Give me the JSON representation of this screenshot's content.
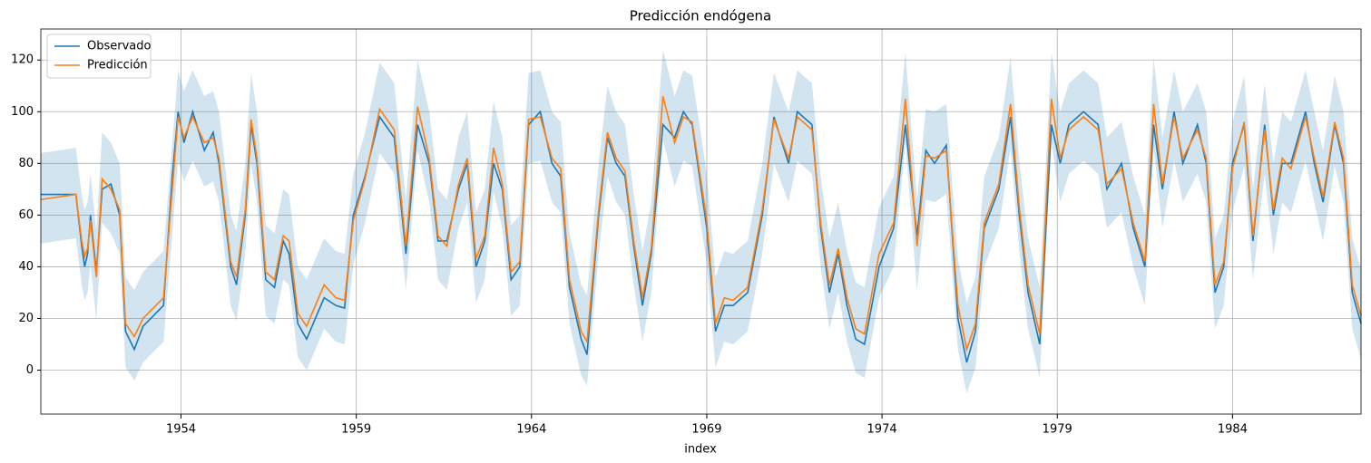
{
  "chart_data": {
    "type": "line",
    "title": "Predicción endógena",
    "xlabel": "index",
    "x": [
      "1950-01",
      "1951-01",
      "1951-03",
      "1951-04",
      "1951-05",
      "1951-06",
      "1951-08",
      "1951-10",
      "1952-01",
      "1952-04",
      "1952-06",
      "1952-09",
      "1952-12",
      "1953-07",
      "1953-10",
      "1953-12",
      "1954-02",
      "1954-05",
      "1954-09",
      "1954-12",
      "1955-02",
      "1955-04",
      "1955-06",
      "1955-08",
      "1955-11",
      "1956-01",
      "1956-03",
      "1956-06",
      "1956-09",
      "1956-12",
      "1957-02",
      "1957-05",
      "1957-08",
      "1957-11",
      "1958-02",
      "1958-06",
      "1958-09",
      "1958-12",
      "1959-04",
      "1959-09",
      "1960-02",
      "1960-06",
      "1960-10",
      "1961-02",
      "1961-05",
      "1961-08",
      "1961-12",
      "1962-03",
      "1962-06",
      "1962-09",
      "1962-12",
      "1963-03",
      "1963-06",
      "1963-09",
      "1963-12",
      "1964-04",
      "1964-08",
      "1964-11",
      "1965-02",
      "1965-06",
      "1965-08",
      "1965-12",
      "1966-03",
      "1966-06",
      "1966-09",
      "1966-12",
      "1967-03",
      "1967-06",
      "1967-10",
      "1968-02",
      "1968-05",
      "1968-08",
      "1969-01",
      "1969-04",
      "1969-07",
      "1969-10",
      "1970-03",
      "1970-08",
      "1970-12",
      "1971-05",
      "1971-08",
      "1972-01",
      "1972-04",
      "1972-07",
      "1972-10",
      "1973-01",
      "1973-04",
      "1973-07",
      "1973-12",
      "1974-05",
      "1974-09",
      "1975-01",
      "1975-04",
      "1975-07",
      "1975-11",
      "1976-03",
      "1976-06",
      "1976-09",
      "1976-12",
      "1977-05",
      "1977-09",
      "1977-12",
      "1978-03",
      "1978-07",
      "1978-11",
      "1979-02",
      "1979-05",
      "1979-10",
      "1980-03",
      "1980-06",
      "1980-11",
      "1981-03",
      "1981-07",
      "1981-10",
      "1982-01",
      "1982-05",
      "1982-08",
      "1983-01",
      "1983-04",
      "1983-07",
      "1983-10",
      "1984-01",
      "1984-05",
      "1984-08",
      "1984-12",
      "1985-03",
      "1985-06",
      "1985-09",
      "1986-02",
      "1986-05",
      "1986-08",
      "1986-12",
      "1987-03",
      "1987-06",
      "1987-09"
    ],
    "series": [
      {
        "name": "Observado",
        "color": "#1f77b4",
        "values": [
          68,
          68,
          48,
          40,
          45,
          60,
          38,
          70,
          72,
          60,
          15,
          8,
          17,
          25,
          75,
          100,
          88,
          100,
          85,
          92,
          80,
          60,
          40,
          33,
          60,
          95,
          80,
          35,
          32,
          50,
          45,
          18,
          12,
          20,
          28,
          25,
          24,
          60,
          75,
          98,
          90,
          45,
          95,
          80,
          50,
          50,
          70,
          80,
          40,
          50,
          80,
          70,
          35,
          40,
          95,
          100,
          80,
          75,
          32,
          12,
          6,
          60,
          90,
          80,
          75,
          48,
          25,
          45,
          95,
          90,
          100,
          95,
          55,
          15,
          25,
          25,
          30,
          60,
          98,
          80,
          100,
          95,
          55,
          30,
          45,
          25,
          12,
          10,
          40,
          55,
          95,
          52,
          85,
          80,
          87,
          20,
          3,
          15,
          55,
          70,
          98,
          60,
          30,
          10,
          95,
          80,
          95,
          100,
          95,
          70,
          80,
          55,
          40,
          95,
          70,
          100,
          80,
          95,
          80,
          30,
          40,
          80,
          95,
          50,
          95,
          60,
          80,
          80,
          100,
          80,
          65,
          95,
          80,
          30,
          18
        ]
      },
      {
        "name": "Predicción",
        "color": "#ff7f0e",
        "values": [
          66,
          68,
          50,
          44,
          47,
          58,
          36,
          74,
          70,
          62,
          18,
          13,
          20,
          28,
          70,
          98,
          90,
          98,
          88,
          90,
          82,
          62,
          42,
          36,
          62,
          97,
          82,
          38,
          35,
          52,
          50,
          22,
          17,
          25,
          33,
          28,
          27,
          58,
          74,
          101,
          93,
          48,
          102,
          82,
          52,
          48,
          72,
          82,
          43,
          52,
          86,
          72,
          38,
          42,
          97,
          98,
          82,
          78,
          35,
          15,
          11,
          62,
          92,
          82,
          77,
          50,
          28,
          47,
          106,
          88,
          98,
          96,
          58,
          18,
          28,
          27,
          32,
          62,
          97,
          82,
          98,
          93,
          57,
          33,
          47,
          28,
          16,
          14,
          45,
          57,
          105,
          48,
          83,
          82,
          85,
          25,
          8,
          18,
          57,
          72,
          103,
          63,
          33,
          14,
          105,
          82,
          93,
          98,
          93,
          72,
          78,
          57,
          42,
          103,
          72,
          98,
          82,
          93,
          82,
          33,
          42,
          78,
          96,
          52,
          93,
          62,
          82,
          78,
          98,
          82,
          67,
          96,
          82,
          33,
          21
        ]
      }
    ],
    "band": {
      "color": "#1f77b4",
      "lower": [
        49,
        51,
        33,
        27,
        30,
        41,
        19,
        57,
        53,
        45,
        1,
        -4,
        3,
        11,
        53,
        81,
        73,
        81,
        71,
        73,
        65,
        45,
        25,
        19,
        45,
        80,
        65,
        21,
        18,
        35,
        33,
        5,
        0,
        8,
        16,
        11,
        10,
        41,
        57,
        84,
        76,
        31,
        85,
        65,
        35,
        31,
        55,
        65,
        26,
        35,
        69,
        55,
        21,
        25,
        80,
        81,
        65,
        61,
        18,
        -2,
        -6,
        45,
        75,
        65,
        60,
        33,
        11,
        30,
        89,
        71,
        81,
        79,
        41,
        1,
        11,
        10,
        15,
        45,
        80,
        65,
        81,
        76,
        40,
        16,
        30,
        11,
        -1,
        -3,
        28,
        40,
        88,
        31,
        66,
        65,
        68,
        8,
        -9,
        1,
        40,
        55,
        86,
        46,
        16,
        -3,
        88,
        65,
        76,
        81,
        76,
        55,
        61,
        40,
        25,
        86,
        55,
        81,
        65,
        76,
        65,
        16,
        25,
        61,
        79,
        35,
        76,
        45,
        65,
        61,
        81,
        65,
        50,
        79,
        65,
        16,
        4
      ],
      "upper": [
        84,
        86,
        68,
        62,
        65,
        76,
        54,
        92,
        88,
        80,
        36,
        31,
        38,
        46,
        88,
        116,
        108,
        116,
        106,
        108,
        100,
        80,
        60,
        54,
        80,
        115,
        100,
        56,
        53,
        70,
        68,
        40,
        35,
        43,
        51,
        46,
        45,
        76,
        92,
        119,
        111,
        66,
        120,
        100,
        70,
        66,
        90,
        100,
        61,
        70,
        104,
        90,
        56,
        60,
        115,
        116,
        100,
        96,
        53,
        33,
        29,
        80,
        110,
        100,
        95,
        68,
        46,
        65,
        124,
        106,
        116,
        114,
        76,
        36,
        46,
        45,
        50,
        80,
        115,
        100,
        116,
        111,
        75,
        51,
        65,
        46,
        34,
        32,
        63,
        75,
        123,
        66,
        101,
        100,
        103,
        43,
        26,
        36,
        75,
        90,
        121,
        81,
        51,
        32,
        123,
        100,
        111,
        116,
        111,
        90,
        96,
        75,
        60,
        121,
        90,
        116,
        100,
        111,
        100,
        51,
        60,
        96,
        114,
        70,
        111,
        80,
        100,
        96,
        116,
        100,
        85,
        114,
        100,
        51,
        39
      ]
    },
    "xlim": [
      "1950-01",
      "1987-09"
    ],
    "xticks": [
      {
        "value": "1954-01",
        "label": "1954"
      },
      {
        "value": "1959-01",
        "label": "1959"
      },
      {
        "value": "1964-01",
        "label": "1964"
      },
      {
        "value": "1969-01",
        "label": "1969"
      },
      {
        "value": "1974-01",
        "label": "1974"
      },
      {
        "value": "1979-01",
        "label": "1979"
      },
      {
        "value": "1984-01",
        "label": "1984"
      }
    ],
    "ylim": [
      -17,
      132
    ],
    "yticks": [
      0,
      20,
      40,
      60,
      80,
      100,
      120
    ],
    "grid": true,
    "legend": "upper left"
  }
}
